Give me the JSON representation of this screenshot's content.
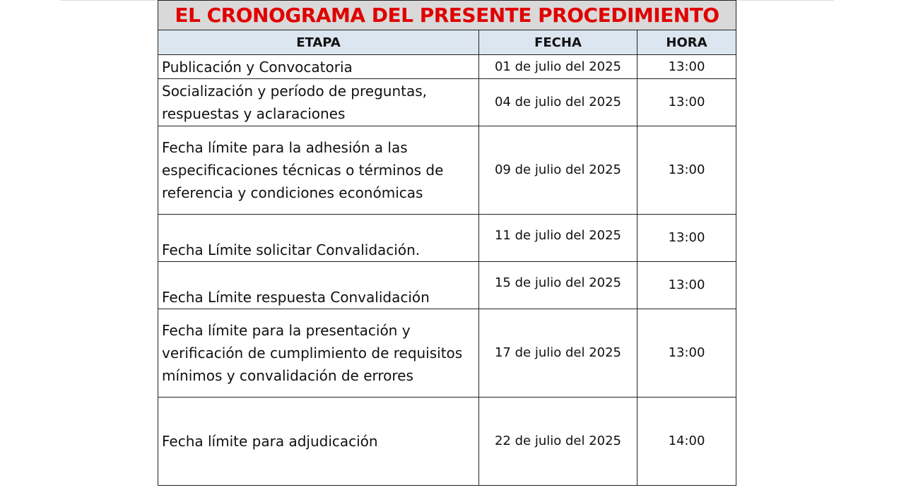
{
  "header": {
    "title": "EL CRONOGRAMA DEL PRESENTE PROCEDIMIENTO"
  },
  "table": {
    "columns": [
      "ETAPA",
      "FECHA",
      "HORA"
    ],
    "rows": [
      [
        "Publicación y Convocatoria",
        "01 de julio del 2025",
        "13:00"
      ],
      [
        "Socialización y período de preguntas, respuestas y aclaraciones",
        "04 de julio del 2025",
        "13:00"
      ],
      [
        "Fecha límite para la adhesión a las especificaciones técnicas o términos de referencia y condiciones económicas",
        "09 de julio del 2025",
        "13:00"
      ],
      [
        "Fecha Límite solicitar Convalidación.",
        "11 de julio del 2025",
        "13:00"
      ],
      [
        "Fecha Límite respuesta Convalidación",
        "15 de julio del 2025",
        "13:00"
      ],
      [
        "Fecha límite para la presentación y verificación de cumplimiento de requisitos mínimos y convalidación de errores",
        "17 de julio del 2025",
        "13:00"
      ],
      [
        "Fecha límite para adjudicación",
        "22 de julio del 2025",
        "14:00"
      ]
    ]
  }
}
